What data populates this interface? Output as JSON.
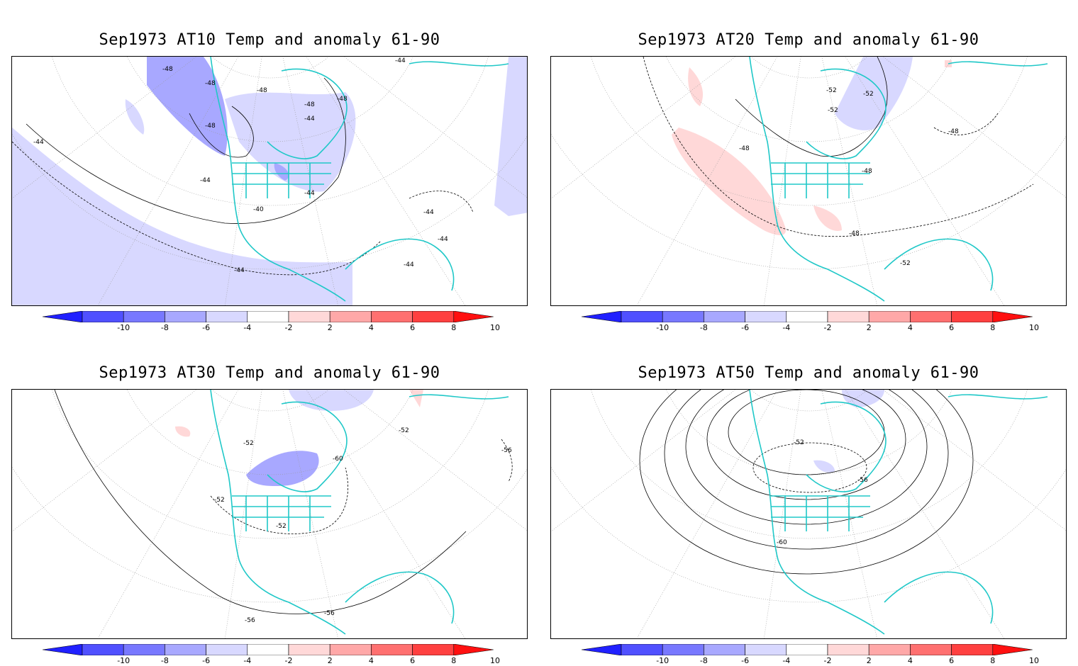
{
  "panels": [
    {
      "id": "at10",
      "title": "Sep1973 AT10 Temp and anomaly 61-90",
      "contour_labels": [
        "-48",
        "-48",
        "-48",
        "-48",
        "-48",
        "-48",
        "-44",
        "-44",
        "-44",
        "-44",
        "-44",
        "-44",
        "-40",
        "-44",
        "-44",
        "-44"
      ]
    },
    {
      "id": "at20",
      "title": "Sep1973 AT20 Temp and anomaly 61-90",
      "contour_labels": [
        "-52",
        "-52",
        "-52",
        "-48",
        "-48",
        "-48",
        "-48",
        "-52"
      ]
    },
    {
      "id": "at30",
      "title": "Sep1973 AT30 Temp and anomaly 61-90",
      "contour_labels": [
        "-52",
        "-52",
        "-56",
        "-60",
        "-52",
        "-52",
        "-56",
        "-56"
      ]
    },
    {
      "id": "at50",
      "title": "Sep1973 AT50 Temp and anomaly 61-90",
      "contour_labels": [
        "-52",
        "-56",
        "-60"
      ]
    }
  ],
  "colorbar": {
    "labels": [
      "-10",
      "-8",
      "-6",
      "-4",
      "-2",
      "2",
      "4",
      "6",
      "8",
      "10"
    ],
    "colors": [
      "#2020ff",
      "#5050ff",
      "#7878ff",
      "#a8a8ff",
      "#d8d8ff",
      "#ffffff",
      "#ffd8d8",
      "#ffa8a8",
      "#ff7070",
      "#ff4040",
      "#ff1010"
    ]
  },
  "style": {
    "coastline_color": "#20c8c8",
    "contour_color": "#000000",
    "grid_color": "#999999"
  }
}
